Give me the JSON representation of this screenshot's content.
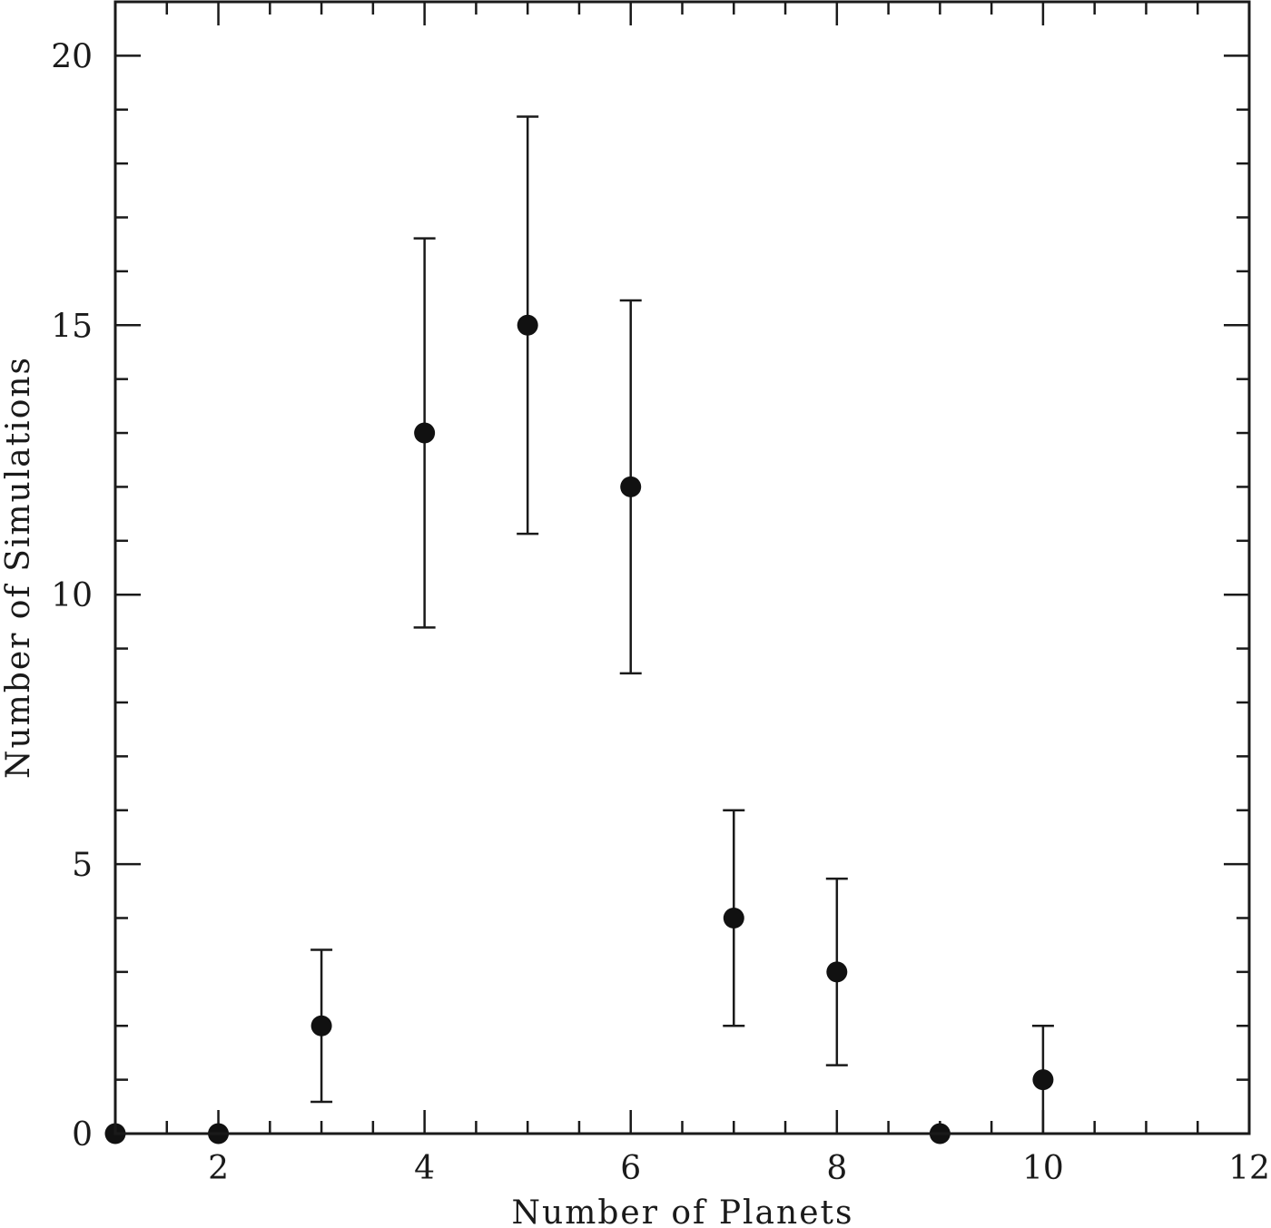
{
  "chart_data": {
    "type": "scatter",
    "title": "",
    "xlabel": "Number of Planets",
    "ylabel": "Number of Simulations",
    "xlim": [
      1,
      12
    ],
    "ylim": [
      0,
      21
    ],
    "x_major_ticks": [
      2,
      4,
      6,
      8,
      10,
      12
    ],
    "x_minor_step": 0.5,
    "y_major_ticks": [
      0,
      5,
      10,
      15,
      20
    ],
    "y_minor_step": 1,
    "grid": false,
    "legend": null,
    "series": [
      {
        "name": "simulations",
        "marker": "filled-circle",
        "color": "#111111",
        "x": [
          1,
          2,
          3,
          4,
          5,
          6,
          7,
          8,
          9,
          10
        ],
        "y": [
          0,
          0,
          2,
          13,
          15,
          12,
          4,
          3,
          0,
          1
        ],
        "error": [
          0,
          0,
          1.41,
          3.61,
          3.87,
          3.46,
          2.0,
          1.73,
          0,
          1.0
        ]
      }
    ]
  }
}
